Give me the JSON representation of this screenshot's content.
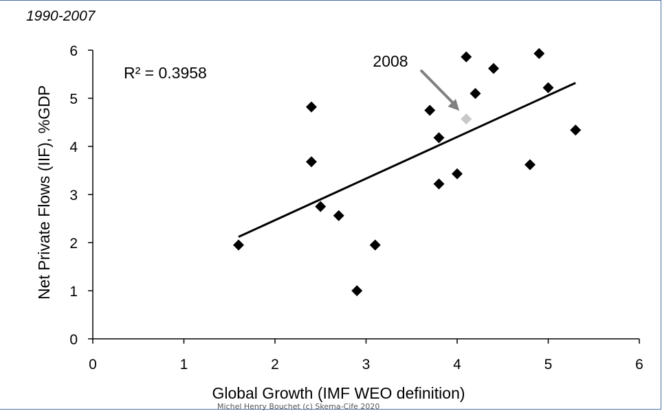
{
  "chart_data": {
    "type": "scatter",
    "title": "1990-2007",
    "xlabel": "Global Growth (IMF WEO definition)",
    "ylabel": "Net Private Flows (IIF), %GDP",
    "xlim": [
      0,
      6
    ],
    "ylim": [
      0,
      6
    ],
    "xticks": [
      0,
      1,
      2,
      3,
      4,
      5,
      6
    ],
    "yticks": [
      0,
      1,
      2,
      3,
      4,
      5,
      6
    ],
    "grid": false,
    "series": [
      {
        "points": [
          {
            "x": 1.6,
            "y": 1.95
          },
          {
            "x": 2.4,
            "y": 4.82
          },
          {
            "x": 2.4,
            "y": 3.68
          },
          {
            "x": 2.5,
            "y": 2.75
          },
          {
            "x": 2.7,
            "y": 2.56
          },
          {
            "x": 2.9,
            "y": 1.0
          },
          {
            "x": 3.1,
            "y": 1.95
          },
          {
            "x": 3.7,
            "y": 4.75
          },
          {
            "x": 3.8,
            "y": 4.18
          },
          {
            "x": 3.8,
            "y": 3.22
          },
          {
            "x": 4.0,
            "y": 3.43
          },
          {
            "x": 4.1,
            "y": 5.86
          },
          {
            "x": 4.2,
            "y": 5.1
          },
          {
            "x": 4.4,
            "y": 5.62
          },
          {
            "x": 4.8,
            "y": 3.62
          },
          {
            "x": 4.9,
            "y": 5.93
          },
          {
            "x": 5.0,
            "y": 5.22
          },
          {
            "x": 5.3,
            "y": 4.34
          }
        ],
        "color": "#000000"
      }
    ],
    "highlight": {
      "label": "2008",
      "x": 4.1,
      "y": 4.57,
      "color": "#c8c8c8",
      "arrow_color": "#808080"
    },
    "trendline": {
      "x1": 1.6,
      "y1": 2.12,
      "x2": 5.3,
      "y2": 5.32,
      "r2_label": "R² = 0.3958"
    }
  },
  "footer": "Michel Henry Bouchet (c) Skema-Cife 2020"
}
